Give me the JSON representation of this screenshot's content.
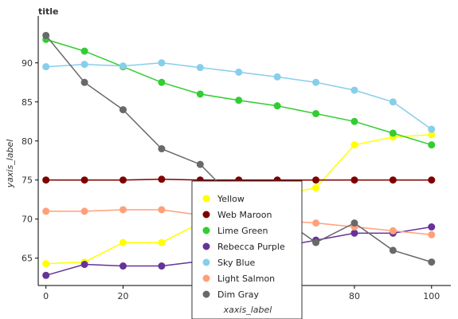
{
  "chart_data": {
    "type": "line",
    "title": "title",
    "xlabel": "xaxis_label",
    "ylabel": "yaxis_label",
    "xlim": [
      -2,
      105
    ],
    "ylim": [
      61.5,
      96
    ],
    "x_ticks": [
      0,
      20,
      40,
      60,
      80,
      100
    ],
    "y_ticks": [
      65,
      70,
      75,
      80,
      85,
      90
    ],
    "x": [
      0,
      10,
      20,
      30,
      40,
      50,
      60,
      70,
      80,
      90,
      100
    ],
    "legend_position": "center",
    "series": [
      {
        "name": "Yellow",
        "color": "#ffff00",
        "values": [
          64.3,
          64.5,
          67.0,
          67.0,
          69.5,
          71.8,
          73.0,
          74.0,
          79.5,
          80.5,
          80.8
        ]
      },
      {
        "name": "Web Maroon",
        "color": "#800000",
        "values": [
          75.0,
          75.0,
          75.0,
          75.1,
          75.0,
          75.0,
          75.0,
          75.0,
          75.0,
          75.0,
          75.0
        ]
      },
      {
        "name": "Lime Green",
        "color": "#32cd32",
        "values": [
          93.0,
          91.5,
          89.5,
          87.5,
          86.0,
          85.2,
          84.5,
          83.5,
          82.5,
          81.0,
          79.5
        ]
      },
      {
        "name": "Rebecca Purple",
        "color": "#663399",
        "values": [
          62.8,
          64.2,
          64.0,
          64.0,
          64.6,
          65.5,
          66.4,
          67.3,
          68.2,
          68.2,
          69.0
        ]
      },
      {
        "name": "Sky Blue",
        "color": "#87ceeb",
        "values": [
          89.5,
          89.8,
          89.6,
          90.0,
          89.4,
          88.8,
          88.2,
          87.5,
          86.5,
          85.0,
          81.5
        ]
      },
      {
        "name": "Light Salmon",
        "color": "#ffa07a",
        "values": [
          71.0,
          71.0,
          71.2,
          71.2,
          70.5,
          70.0,
          69.8,
          69.5,
          69.0,
          68.5,
          68.0
        ]
      },
      {
        "name": "Dim Gray",
        "color": "#696969",
        "values": [
          93.5,
          87.5,
          84.0,
          79.0,
          77.0,
          72.0,
          70.5,
          67.0,
          69.5,
          66.0,
          64.5
        ]
      }
    ]
  }
}
